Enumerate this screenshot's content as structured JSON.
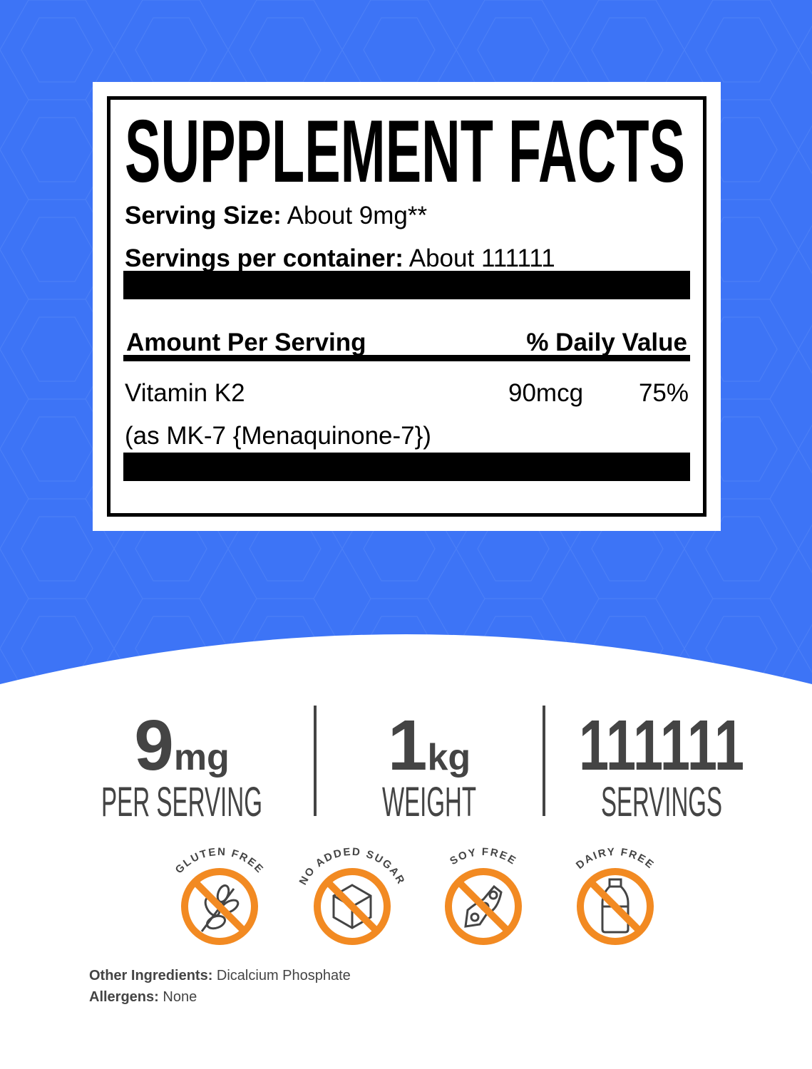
{
  "panel": {
    "title": "SUPPLEMENT FACTS",
    "serving_size_label": "Serving Size:",
    "serving_size_value": "About 9mg**",
    "servings_label": "Servings per container:",
    "servings_value": "About 111111",
    "amount_header": "Amount Per Serving",
    "dv_header": "% Daily Value",
    "ingredient": {
      "name": "Vitamin K2",
      "form": "(as MK-7 {Menaquinone-7})",
      "amount": "90mcg",
      "dv": "75%"
    }
  },
  "stats": [
    {
      "number": "9",
      "unit": "mg",
      "label": "PER SERVING"
    },
    {
      "number": "1",
      "unit": "kg",
      "label": "WEIGHT"
    },
    {
      "number": "111111",
      "unit": "",
      "label": "SERVINGS"
    }
  ],
  "badges": [
    {
      "label": "GLUTEN FREE",
      "icon": "wheat-icon"
    },
    {
      "label": "NO ADDED SUGAR",
      "icon": "sugar-cube-icon"
    },
    {
      "label": "SOY FREE",
      "icon": "soybean-icon"
    },
    {
      "label": "DAIRY FREE",
      "icon": "milk-bottle-icon"
    }
  ],
  "other_ingredients": {
    "label": "Other Ingredients:",
    "value": "Dicalcium Phosphate"
  },
  "allergens": {
    "label": "Allergens:",
    "value": "None"
  },
  "colors": {
    "background_blue": "#3d74f6",
    "badge_orange": "#f28a22",
    "stat_gray": "#444444"
  }
}
